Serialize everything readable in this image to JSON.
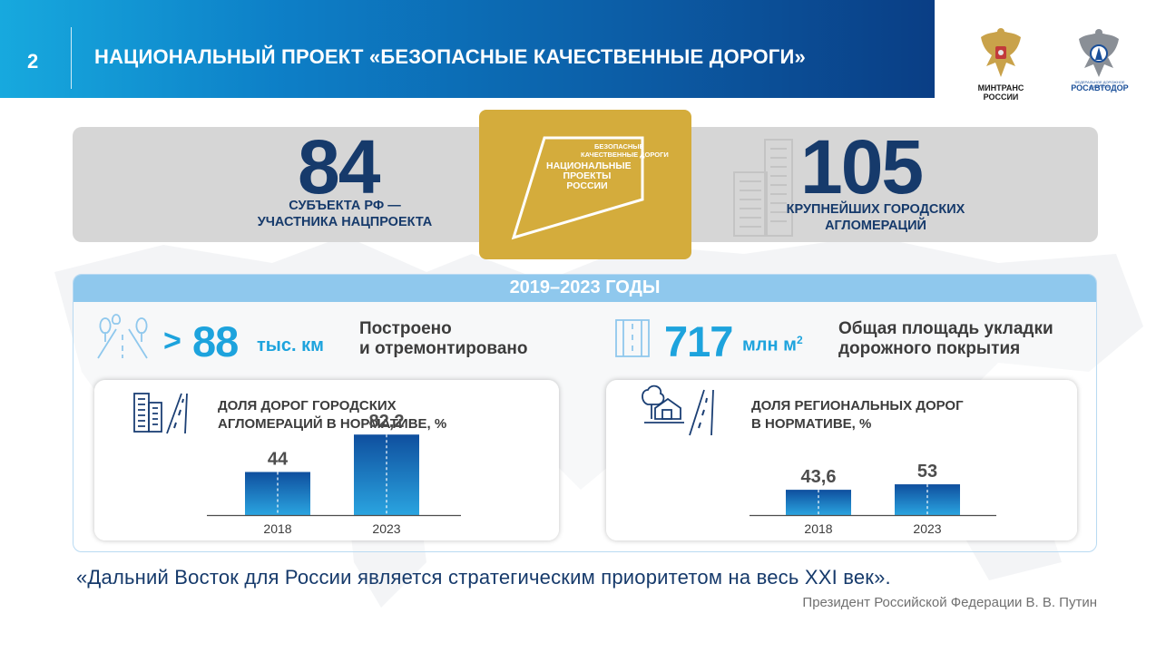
{
  "header": {
    "slide_number": "2",
    "title": "НАЦИОНАЛЬНЫЙ ПРОЕКТ «БЕЗОПАСНЫЕ КАЧЕСТВЕННЫЕ ДОРОГИ»",
    "logos": [
      {
        "icon": "mintrans-emblem-icon",
        "caption": "МИНТРАНС РОССИИ"
      },
      {
        "icon": "rosavtodor-emblem-icon",
        "subcaption": "ФЕДЕРАЛЬНОЕ ДОРОЖНОЕ АГЕНТСТВО",
        "caption": "РОСАВТОДОР"
      }
    ]
  },
  "stats": {
    "subjects": {
      "value": "84",
      "caption_line1": "СУБЪЕКТА РФ —",
      "caption_line2": "УЧАСТНИКА НАЦПРОЕКТА"
    },
    "agglomerations": {
      "value": "105",
      "caption_line1": "КРУПНЕЙШИХ ГОРОДСКИХ",
      "caption_line2": "АГЛОМЕРАЦИЙ"
    }
  },
  "project_logo": {
    "line1": "БЕЗОПАСНЫЕ",
    "line2": "КАЧЕСТВЕННЫЕ ДОРОГИ",
    "main_line1": "НАЦИОНАЛЬНЫЕ",
    "main_line2": "ПРОЕКТЫ",
    "main_line3": "РОССИИ",
    "color": "#d4ac3c"
  },
  "period": {
    "title": "2019–2023 ГОДЫ",
    "roads": {
      "prefix": ">",
      "value": "88",
      "unit": "тыс. км",
      "desc_line1": "Построено",
      "desc_line2": "и отремонтировано"
    },
    "surface": {
      "value": "717",
      "unit": "млн м",
      "unit_sup": "2",
      "desc_line1": "Общая площадь укладки",
      "desc_line2": "дорожного покрытия"
    }
  },
  "chart_data": [
    {
      "type": "bar",
      "title_line1": "ДОЛЯ ДОРОГ ГОРОДСКИХ",
      "title_line2": "АГЛОМЕРАЦИЙ В НОРМАТИВЕ, %",
      "categories": [
        "2018",
        "2023"
      ],
      "values": [
        44,
        82.2
      ],
      "value_labels": [
        "44",
        "82,2"
      ],
      "ylim": [
        0,
        100
      ]
    },
    {
      "type": "bar",
      "title_line1": "ДОЛЯ РЕГИОНАЛЬНЫХ ДОРОГ",
      "title_line2": "В НОРМАТИВЕ, %",
      "categories": [
        "2018",
        "2023"
      ],
      "values": [
        43.6,
        53
      ],
      "value_labels": [
        "43,6",
        "53"
      ],
      "ylim": [
        0,
        100
      ]
    }
  ],
  "quote": {
    "text": "«Дальний Восток для России является стратегическим приоритетом на весь XXI век».",
    "author": "Президент Российской Федерации В. В. Путин"
  },
  "colors": {
    "accent": "#1da3dd",
    "navy": "#163a6b",
    "gold": "#d4ac3c",
    "panel_head": "#8fc8ed"
  }
}
